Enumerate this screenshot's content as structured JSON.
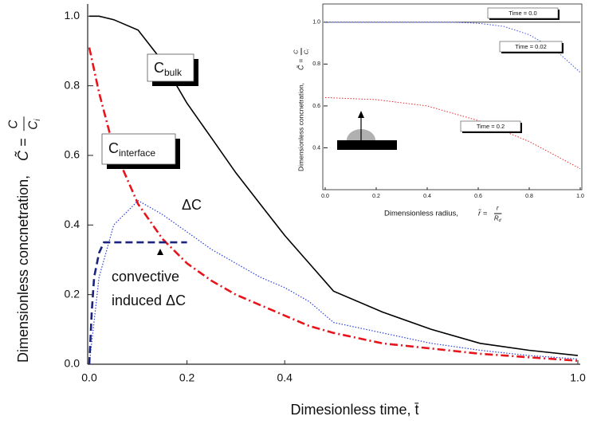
{
  "chart_data": [
    {
      "type": "line",
      "x_label": "Dimesionless time, t̄",
      "y_label": "Dimensionless concnetration,",
      "y_label_formula": {
        "lhs": "C̃ =",
        "num": "C",
        "den": "C",
        "den_sub": "i"
      },
      "xlim": [
        0,
        1
      ],
      "ylim": [
        0,
        1.035
      ],
      "xticks": [
        {
          "value": 0,
          "label": "0.0"
        },
        0.2,
        0.4,
        {
          "value": 1,
          "label": "1.0"
        }
      ],
      "yticks": [
        {
          "value": 0,
          "label": "0.0"
        },
        0.2,
        0.4,
        0.6,
        0.8,
        {
          "value": 1,
          "label": "1.0"
        }
      ],
      "series": [
        {
          "name": "C bulk",
          "color": "#000000",
          "dash": "solid",
          "x": [
            0,
            0.02,
            0.05,
            0.1,
            0.15,
            0.2,
            0.25,
            0.3,
            0.35,
            0.4,
            0.45,
            0.5,
            0.6,
            0.7,
            0.8,
            0.9,
            1.0
          ],
          "values": [
            1.0,
            1.0,
            0.99,
            0.96,
            0.87,
            0.75,
            0.65,
            0.55,
            0.46,
            0.37,
            0.29,
            0.21,
            0.15,
            0.1,
            0.06,
            0.04,
            0.025
          ]
        },
        {
          "name": "C interface",
          "color": "#e8141c",
          "dash": "dashdot",
          "x": [
            0,
            0.02,
            0.05,
            0.1,
            0.15,
            0.2,
            0.25,
            0.3,
            0.35,
            0.4,
            0.45,
            0.5,
            0.6,
            0.7,
            0.8,
            0.9,
            1.0
          ],
          "values": [
            0.91,
            0.78,
            0.62,
            0.46,
            0.36,
            0.29,
            0.24,
            0.2,
            0.17,
            0.14,
            0.11,
            0.09,
            0.06,
            0.045,
            0.03,
            0.02,
            0.01
          ]
        },
        {
          "name": "ΔC",
          "color": "#2b3fe0",
          "dash": "dotted",
          "x": [
            0,
            0.02,
            0.05,
            0.1,
            0.15,
            0.2,
            0.25,
            0.3,
            0.35,
            0.4,
            0.45,
            0.5,
            0.6,
            0.7,
            0.8,
            0.9,
            1.0
          ],
          "values": [
            0,
            0.25,
            0.4,
            0.47,
            0.43,
            0.38,
            0.33,
            0.29,
            0.25,
            0.22,
            0.18,
            0.12,
            0.09,
            0.06,
            0.04,
            0.025,
            0.015
          ]
        },
        {
          "name": "convective induced ΔC",
          "color": "#1a237e",
          "dash": "dashed",
          "x": [
            0,
            0.005,
            0.01,
            0.02,
            0.03,
            0.1,
            0.2
          ],
          "values": [
            0,
            0.15,
            0.25,
            0.32,
            0.35,
            0.35,
            0.35
          ]
        }
      ],
      "annotations": [
        {
          "text": "C",
          "sub": "bulk"
        },
        {
          "text": "C",
          "sub": "interface"
        },
        {
          "text": "ΔC"
        },
        {
          "text": "convective"
        },
        {
          "text": "induced ΔC"
        }
      ]
    },
    {
      "type": "line",
      "x_label": "Dimensionless radius,",
      "x_label_formula": {
        "lhs": "r̃ =",
        "num": "r",
        "den": "R",
        "den_sub": "d"
      },
      "y_label": "Dimensionless concnetration,",
      "y_label_formula": {
        "lhs": "C̃ =",
        "num": "C",
        "den": "C",
        "den_sub": "i"
      },
      "xlim": [
        0,
        1
      ],
      "ylim": [
        0.2,
        1.087
      ],
      "xticks": [
        {
          "value": 0,
          "label": "0.0"
        },
        0.2,
        0.4,
        0.6,
        0.8,
        {
          "value": 1,
          "label": "1.0"
        }
      ],
      "yticks": [
        0.4,
        0.6,
        0.8,
        {
          "value": 1,
          "label": "1.0"
        }
      ],
      "series": [
        {
          "name": "Time = 0.0",
          "color": "#000000",
          "dash": "solid",
          "x": [
            0,
            1
          ],
          "values": [
            1.0,
            1.0
          ]
        },
        {
          "name": "Time = 0.02",
          "color": "#2b3fe0",
          "dash": "dotted",
          "x": [
            0,
            0.4,
            0.5,
            0.6,
            0.7,
            0.8,
            0.9,
            1.0
          ],
          "values": [
            1.0,
            1.0,
            1.0,
            0.995,
            0.98,
            0.94,
            0.87,
            0.76
          ]
        },
        {
          "name": "Time = 0.2",
          "color": "#e8141c",
          "dash": "dotted",
          "x": [
            0,
            0.2,
            0.4,
            0.6,
            0.8,
            1.0
          ],
          "values": [
            0.64,
            0.63,
            0.6,
            0.53,
            0.43,
            0.3
          ]
        }
      ]
    }
  ]
}
